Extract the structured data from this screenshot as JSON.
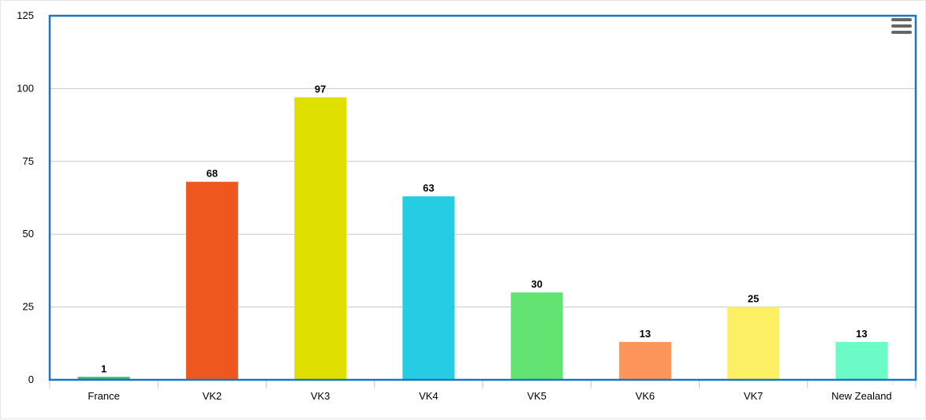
{
  "chart_data": {
    "type": "bar",
    "categories": [
      "France",
      "VK2",
      "VK3",
      "VK4",
      "VK5",
      "VK6",
      "VK7",
      "New Zealand"
    ],
    "values": [
      1,
      68,
      97,
      63,
      30,
      13,
      25,
      13
    ],
    "colors": [
      "#3cb371",
      "#ee571e",
      "#dfe000",
      "#25cce4",
      "#63e472",
      "#fe955a",
      "#fdf064",
      "#6bfbc6"
    ],
    "yticks": [
      0,
      25,
      50,
      75,
      100,
      125
    ],
    "ylim": [
      0,
      125
    ],
    "grid": true,
    "data_labels": true,
    "title": "",
    "xlabel": "",
    "ylabel": ""
  },
  "colors": {
    "frame": "#1a75c2",
    "grid": "#c8c8c8",
    "axis": "#bfc8d6"
  },
  "menu": {
    "icon": "hamburger-menu-icon"
  }
}
